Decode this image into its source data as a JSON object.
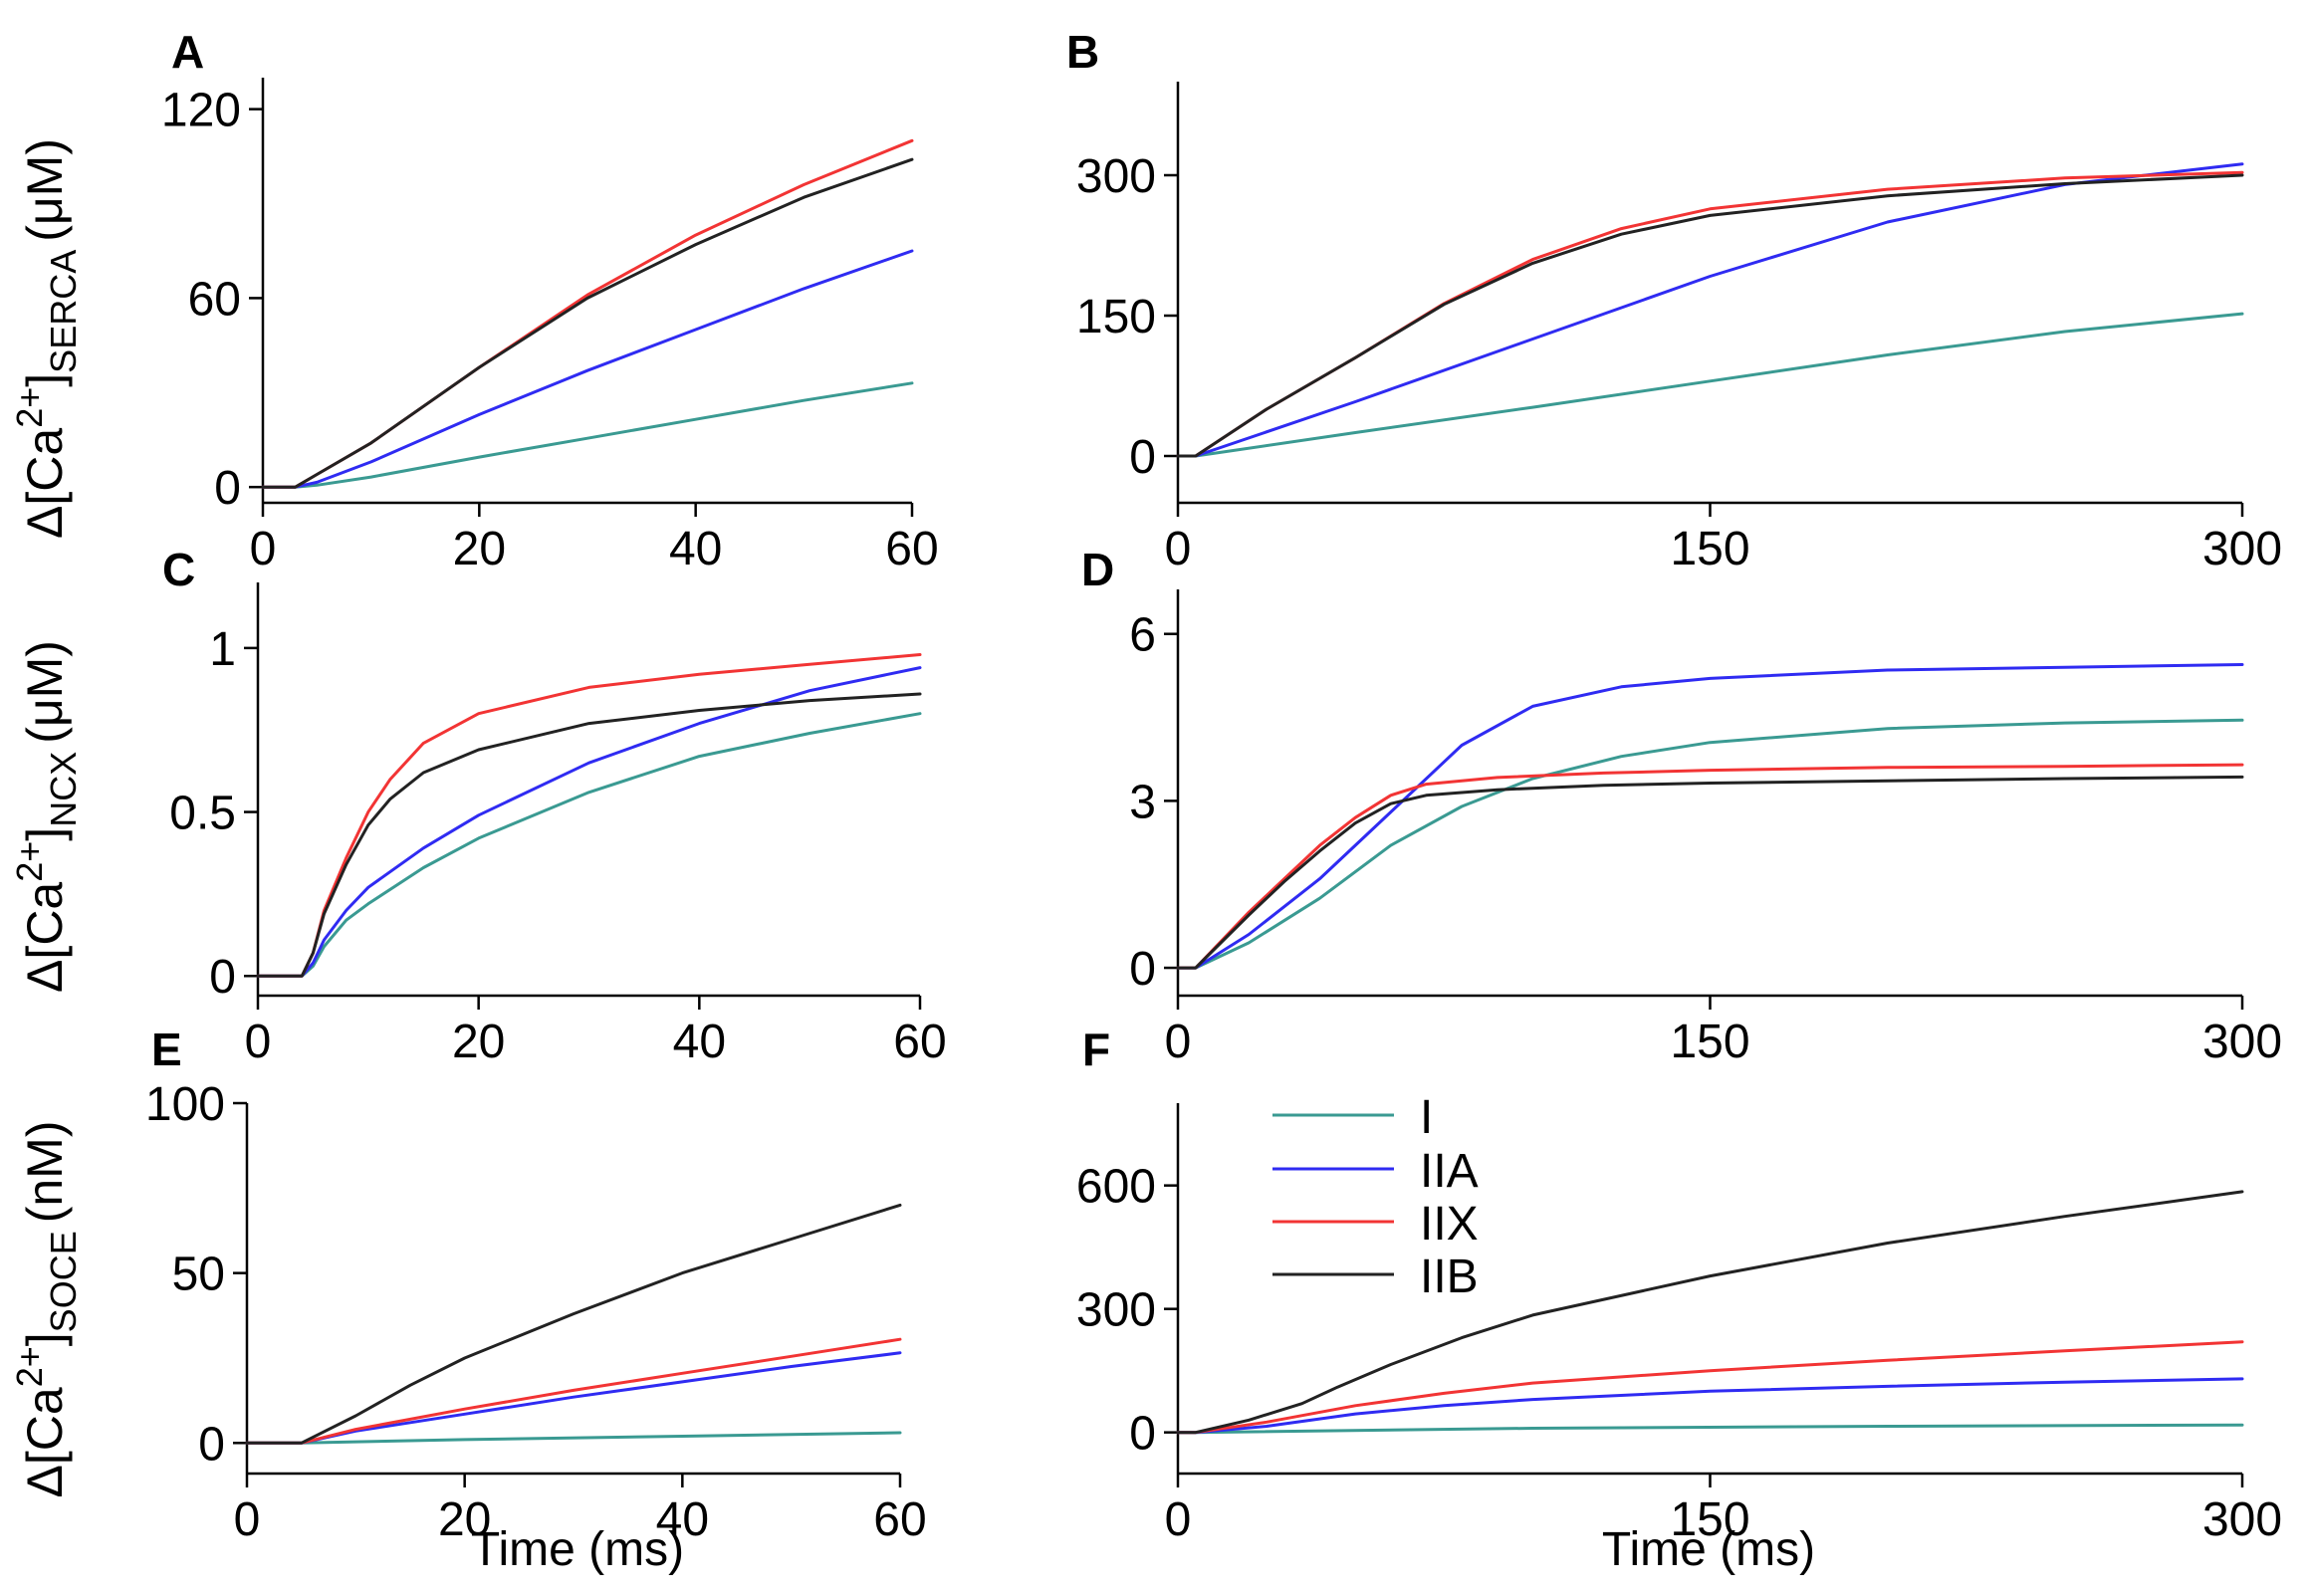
{
  "colors": {
    "I": "#3a9a92",
    "IIA": "#2f2bf2",
    "IIX": "#f23434",
    "IIB": "#222222",
    "axis": "#000000"
  },
  "legend": [
    {
      "key": "I",
      "label": "I"
    },
    {
      "key": "IIA",
      "label": "IIA"
    },
    {
      "key": "IIX",
      "label": "IIX"
    },
    {
      "key": "IIB",
      "label": "IIB"
    }
  ],
  "ylabels": {
    "row0": {
      "prefix": "Δ[Ca",
      "sup": "2+",
      "close": "]",
      "sub": "SERCA",
      "unit": "(μM)"
    },
    "row1": {
      "prefix": "Δ[Ca",
      "sup": "2+",
      "close": "]",
      "sub": "NCX",
      "unit": "(μM)"
    },
    "row2": {
      "prefix": "Δ[Ca",
      "sup": "2+",
      "close": "]",
      "sub": "SOCE",
      "unit": "(nM)"
    }
  },
  "xlabel": "Time (ms)",
  "chart_data": [
    {
      "panel": "A",
      "type": "line",
      "xlim": [
        0,
        60
      ],
      "ylim": [
        -5,
        130
      ],
      "xticks": [
        0,
        20,
        40,
        60
      ],
      "yticks": [
        0,
        60,
        120
      ],
      "series": [
        {
          "name": "I",
          "x": [
            0,
            3,
            5,
            10,
            20,
            30,
            40,
            50,
            60
          ],
          "y": [
            0,
            0,
            0.6,
            3.2,
            9.5,
            15.5,
            21.5,
            27.5,
            33
          ]
        },
        {
          "name": "IIA",
          "x": [
            0,
            3,
            5,
            10,
            20,
            30,
            40,
            50,
            60
          ],
          "y": [
            0,
            0,
            1.5,
            8,
            23,
            37,
            50,
            63,
            75
          ]
        },
        {
          "name": "IIX",
          "x": [
            0,
            3,
            5,
            10,
            20,
            30,
            40,
            50,
            60
          ],
          "y": [
            0,
            0,
            4,
            14,
            38,
            61,
            80,
            96,
            110
          ]
        },
        {
          "name": "IIB",
          "x": [
            0,
            3,
            5,
            10,
            20,
            30,
            40,
            50,
            60
          ],
          "y": [
            0,
            0,
            4,
            14,
            38,
            60,
            77,
            92,
            104
          ]
        }
      ]
    },
    {
      "panel": "B",
      "type": "line",
      "xlim": [
        0,
        300
      ],
      "ylim": [
        -50,
        400
      ],
      "xticks": [
        0,
        150,
        300
      ],
      "yticks": [
        0,
        150,
        300
      ],
      "series": [
        {
          "name": "I",
          "x": [
            0,
            5,
            50,
            100,
            150,
            200,
            250,
            300
          ],
          "y": [
            0,
            0,
            25,
            52,
            80,
            108,
            133,
            152
          ]
        },
        {
          "name": "IIA",
          "x": [
            0,
            5,
            50,
            100,
            150,
            200,
            250,
            300
          ],
          "y": [
            0,
            0,
            58,
            125,
            192,
            250,
            290,
            312
          ]
        },
        {
          "name": "IIX",
          "x": [
            0,
            5,
            25,
            50,
            75,
            100,
            125,
            150,
            200,
            250,
            300
          ],
          "y": [
            0,
            0,
            50,
            105,
            163,
            210,
            243,
            264,
            285,
            297,
            303
          ]
        },
        {
          "name": "IIB",
          "x": [
            0,
            5,
            25,
            50,
            75,
            100,
            125,
            150,
            200,
            250,
            300
          ],
          "y": [
            0,
            0,
            50,
            105,
            162,
            206,
            237,
            257,
            278,
            291,
            300
          ]
        }
      ]
    },
    {
      "panel": "C",
      "type": "line",
      "xlim": [
        0,
        60
      ],
      "ylim": [
        -0.06,
        1.2
      ],
      "xticks": [
        0,
        20,
        40,
        60
      ],
      "yticks": [
        0,
        0.5,
        1
      ],
      "ytick_labels": [
        "0",
        "0.5",
        "1"
      ],
      "series": [
        {
          "name": "I",
          "x": [
            0,
            4,
            5,
            6,
            8,
            10,
            15,
            20,
            30,
            40,
            50,
            60
          ],
          "y": [
            0,
            0,
            0.03,
            0.09,
            0.17,
            0.22,
            0.33,
            0.42,
            0.56,
            0.67,
            0.74,
            0.8
          ]
        },
        {
          "name": "IIA",
          "x": [
            0,
            4,
            5,
            6,
            8,
            10,
            15,
            20,
            30,
            40,
            50,
            60
          ],
          "y": [
            0,
            0,
            0.04,
            0.11,
            0.2,
            0.27,
            0.39,
            0.49,
            0.65,
            0.77,
            0.87,
            0.94
          ]
        },
        {
          "name": "IIX",
          "x": [
            0,
            4,
            5,
            6,
            8,
            10,
            12,
            15,
            20,
            30,
            40,
            50,
            60
          ],
          "y": [
            0,
            0,
            0.07,
            0.2,
            0.36,
            0.5,
            0.6,
            0.71,
            0.8,
            0.88,
            0.92,
            0.95,
            0.98
          ]
        },
        {
          "name": "IIB",
          "x": [
            0,
            4,
            5,
            6,
            8,
            10,
            12,
            15,
            20,
            30,
            40,
            50,
            60
          ],
          "y": [
            0,
            0,
            0.07,
            0.19,
            0.34,
            0.46,
            0.54,
            0.62,
            0.69,
            0.77,
            0.81,
            0.84,
            0.86
          ]
        }
      ]
    },
    {
      "panel": "D",
      "type": "line",
      "xlim": [
        0,
        300
      ],
      "ylim": [
        -0.5,
        6.8
      ],
      "xticks": [
        0,
        150,
        300
      ],
      "yticks": [
        0,
        3,
        6
      ],
      "series": [
        {
          "name": "I",
          "x": [
            0,
            5,
            20,
            40,
            60,
            80,
            100,
            125,
            150,
            200,
            250,
            300
          ],
          "y": [
            0,
            0,
            0.45,
            1.25,
            2.2,
            2.9,
            3.4,
            3.8,
            4.05,
            4.3,
            4.4,
            4.45
          ]
        },
        {
          "name": "IIA",
          "x": [
            0,
            5,
            20,
            40,
            60,
            80,
            100,
            125,
            150,
            200,
            250,
            300
          ],
          "y": [
            0,
            0,
            0.6,
            1.6,
            2.8,
            4.0,
            4.7,
            5.05,
            5.2,
            5.35,
            5.4,
            5.45
          ]
        },
        {
          "name": "IIX",
          "x": [
            0,
            5,
            20,
            30,
            40,
            50,
            60,
            70,
            90,
            120,
            150,
            200,
            250,
            300
          ],
          "y": [
            0,
            0,
            1.0,
            1.6,
            2.2,
            2.7,
            3.1,
            3.3,
            3.42,
            3.5,
            3.55,
            3.6,
            3.62,
            3.65
          ]
        },
        {
          "name": "IIB",
          "x": [
            0,
            5,
            20,
            30,
            40,
            50,
            60,
            70,
            90,
            120,
            150,
            200,
            250,
            300
          ],
          "y": [
            0,
            0,
            0.95,
            1.55,
            2.1,
            2.6,
            2.95,
            3.1,
            3.2,
            3.28,
            3.32,
            3.36,
            3.4,
            3.43
          ]
        }
      ]
    },
    {
      "panel": "E",
      "type": "line",
      "xlim": [
        0,
        60
      ],
      "ylim": [
        -9,
        100
      ],
      "xticks": [
        0,
        20,
        40,
        60
      ],
      "yticks": [
        0,
        50,
        100
      ],
      "series": [
        {
          "name": "I",
          "x": [
            0,
            5,
            20,
            40,
            60
          ],
          "y": [
            0,
            0,
            1,
            2,
            3
          ]
        },
        {
          "name": "IIA",
          "x": [
            0,
            5,
            10,
            20,
            30,
            40,
            50,
            60
          ],
          "y": [
            0,
            0,
            3.5,
            8.5,
            13.5,
            18,
            22.5,
            26.5
          ]
        },
        {
          "name": "IIX",
          "x": [
            0,
            5,
            10,
            20,
            30,
            40,
            50,
            60
          ],
          "y": [
            0,
            0,
            4,
            10,
            15.5,
            20.5,
            25.5,
            30.5
          ]
        },
        {
          "name": "IIB",
          "x": [
            0,
            5,
            10,
            15,
            20,
            30,
            40,
            50,
            60
          ],
          "y": [
            0,
            0,
            8,
            17,
            25,
            38,
            50,
            60,
            70
          ]
        }
      ]
    },
    {
      "panel": "F",
      "type": "line",
      "xlim": [
        0,
        300
      ],
      "ylim": [
        -100,
        800
      ],
      "xticks": [
        0,
        150,
        300
      ],
      "yticks": [
        0,
        300,
        600
      ],
      "series": [
        {
          "name": "I",
          "x": [
            0,
            5,
            100,
            200,
            300
          ],
          "y": [
            0,
            0,
            10,
            15,
            18
          ]
        },
        {
          "name": "IIA",
          "x": [
            0,
            5,
            25,
            50,
            75,
            100,
            150,
            200,
            250,
            300
          ],
          "y": [
            0,
            0,
            15,
            45,
            65,
            80,
            100,
            112,
            122,
            130
          ]
        },
        {
          "name": "IIX",
          "x": [
            0,
            5,
            25,
            50,
            75,
            100,
            150,
            200,
            250,
            300
          ],
          "y": [
            0,
            0,
            25,
            65,
            95,
            120,
            150,
            175,
            198,
            220
          ]
        },
        {
          "name": "IIB",
          "x": [
            0,
            5,
            20,
            35,
            45,
            60,
            80,
            100,
            150,
            200,
            250,
            300
          ],
          "y": [
            0,
            0,
            30,
            70,
            110,
            165,
            230,
            285,
            380,
            460,
            525,
            585
          ]
        }
      ]
    }
  ]
}
